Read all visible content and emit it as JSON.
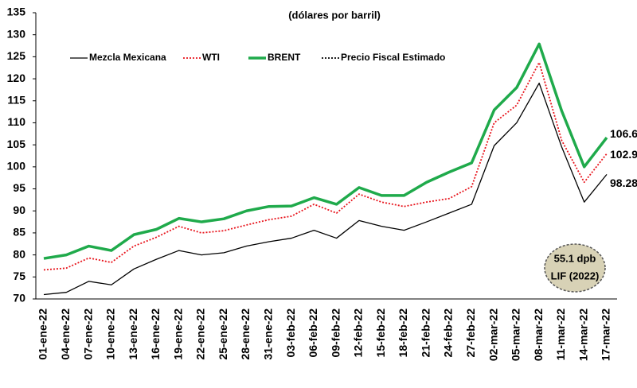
{
  "chart_data": {
    "type": "line",
    "subtitle": "(dólares por barril)",
    "categories": [
      "01-ene-22",
      "04-ene-22",
      "07-ene-22",
      "10-ene-22",
      "13-ene-22",
      "16-ene-22",
      "19-ene-22",
      "22-ene-22",
      "25-ene-22",
      "28-ene-22",
      "31-ene-22",
      "03-feb-22",
      "06-feb-22",
      "09-feb-22",
      "12-feb-22",
      "15-feb-22",
      "18-feb-22",
      "21-feb-22",
      "24-feb-22",
      "27-feb-22",
      "02-mar-22",
      "05-mar-22",
      "08-mar-22",
      "11-mar-22",
      "14-mar-22",
      "17-mar-22"
    ],
    "series": [
      {
        "name": "Mezcla Mexicana",
        "color": "#000000",
        "style": "solid",
        "values": [
          71.0,
          71.5,
          74.0,
          73.2,
          76.8,
          79.0,
          81.0,
          80.0,
          80.5,
          82.0,
          83.0,
          83.8,
          85.6,
          83.8,
          87.8,
          86.5,
          85.6,
          87.5,
          89.5,
          91.5,
          104.8,
          110.0,
          119.0,
          104.5,
          92.0,
          98.28
        ]
      },
      {
        "name": "WTI",
        "color": "#e8141c",
        "style": "dotted",
        "values": [
          76.6,
          77.0,
          79.3,
          78.3,
          82.0,
          84.0,
          86.5,
          85.0,
          85.5,
          86.8,
          88.0,
          88.8,
          91.5,
          89.5,
          93.8,
          92.0,
          91.0,
          92.0,
          92.8,
          95.5,
          110.0,
          114.0,
          123.7,
          106.0,
          96.5,
          102.98
        ]
      },
      {
        "name": "BRENT",
        "color": "#1faa4b",
        "style": "thick",
        "values": [
          79.2,
          80.0,
          82.0,
          81.0,
          84.6,
          85.8,
          88.3,
          87.5,
          88.2,
          90.0,
          91.0,
          91.1,
          93.0,
          91.5,
          95.3,
          93.5,
          93.5,
          96.5,
          98.8,
          100.9,
          112.9,
          118.0,
          127.9,
          112.7,
          100.0,
          106.64
        ]
      },
      {
        "name": "Precio Fiscal Estimado",
        "color": "#000000",
        "style": "dotted",
        "values": [
          null,
          null,
          null,
          null,
          null,
          null,
          null,
          null,
          null,
          null,
          null,
          null,
          null,
          null,
          null,
          null,
          null,
          null,
          null,
          null,
          null,
          null,
          null,
          null,
          null,
          null
        ]
      }
    ],
    "annotation": [
      "55.1 dpb",
      "LIF (2022)"
    ],
    "ylim": [
      70,
      135
    ],
    "yticks": [
      70,
      75,
      80,
      85,
      90,
      95,
      100,
      105,
      110,
      115,
      120,
      125,
      130,
      135
    ],
    "grid": false
  }
}
